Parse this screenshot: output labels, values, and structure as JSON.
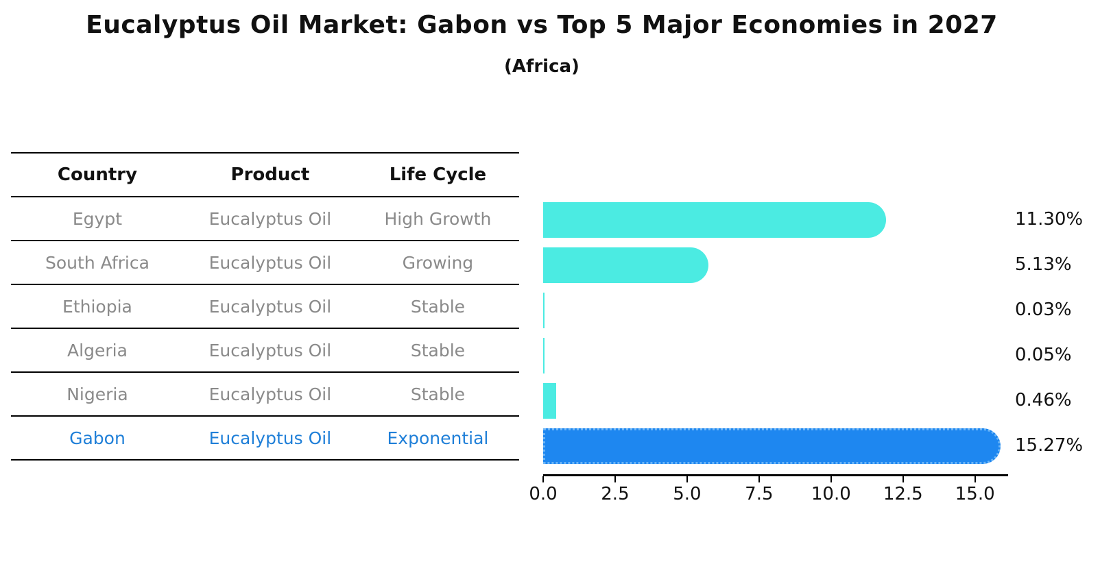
{
  "title": "Eucalyptus Oil Market: Gabon vs Top 5 Major Economies in 2027",
  "subtitle": "(Africa)",
  "table": {
    "headers": [
      "Country",
      "Product",
      "Life Cycle"
    ],
    "rows": [
      {
        "country": "Egypt",
        "product": "Eucalyptus Oil",
        "life_cycle": "High Growth",
        "highlight": false
      },
      {
        "country": "South Africa",
        "product": "Eucalyptus Oil",
        "life_cycle": "Growing",
        "highlight": false
      },
      {
        "country": "Ethiopia",
        "product": "Eucalyptus Oil",
        "life_cycle": "Stable",
        "highlight": false
      },
      {
        "country": "Algeria",
        "product": "Eucalyptus Oil",
        "life_cycle": "Stable",
        "highlight": false
      },
      {
        "country": "Nigeria",
        "product": "Eucalyptus Oil",
        "life_cycle": "Stable",
        "highlight": false
      },
      {
        "country": "Gabon",
        "product": "Eucalyptus Oil",
        "life_cycle": "Exponential",
        "highlight": true
      }
    ]
  },
  "chart_data": {
    "type": "bar",
    "orientation": "horizontal",
    "title": "Eucalyptus Oil Market: Gabon vs Top 5 Major Economies in 2027",
    "subtitle": "(Africa)",
    "categories": [
      "Egypt",
      "South Africa",
      "Ethiopia",
      "Algeria",
      "Nigeria",
      "Gabon"
    ],
    "values": [
      11.3,
      5.13,
      0.03,
      0.05,
      0.46,
      15.27
    ],
    "value_labels": [
      "11.30%",
      "5.13%",
      "0.03%",
      "0.05%",
      "0.46%",
      "15.27%"
    ],
    "xlabel": "",
    "ylabel": "",
    "xlim": [
      0,
      16.15
    ],
    "x_ticks": [
      0.0,
      2.5,
      5.0,
      7.5,
      10.0,
      12.5,
      15.0
    ],
    "x_tick_labels": [
      "0.0",
      "2.5",
      "5.0",
      "7.5",
      "10.0",
      "12.5",
      "15.0"
    ],
    "grid": false,
    "legend": false,
    "highlight_index": 5,
    "colors": {
      "default_bar": "#4bebe2",
      "highlight_bar": "#1e87f0",
      "highlight_border": "#6db6f7",
      "highlight_text": "#1f7fd8",
      "row_text": "#8a8a8a",
      "header_text": "#111111",
      "axis": "#000000",
      "value_label_text": "#111111"
    }
  }
}
